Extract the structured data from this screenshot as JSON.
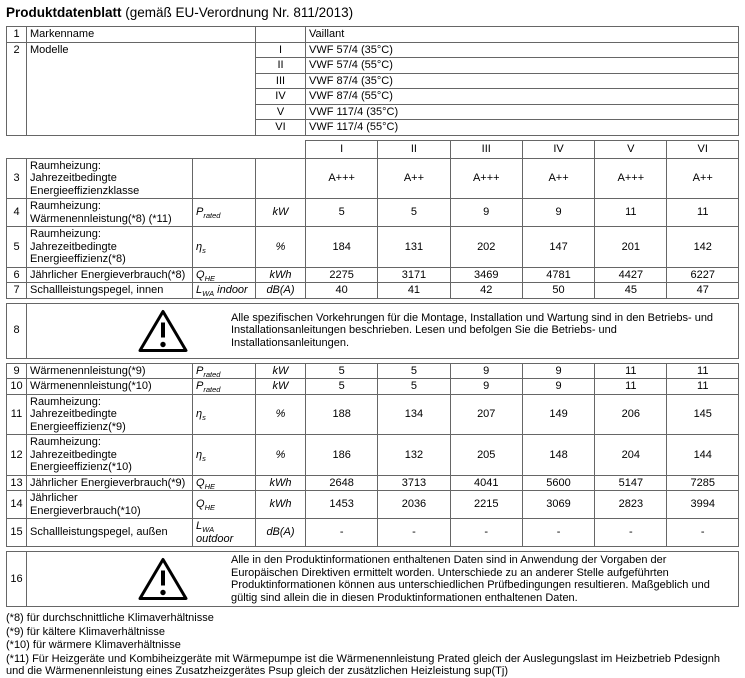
{
  "title": {
    "main": "Produktdatenblatt",
    "suffix": " (gemäß EU-Verordnung Nr. 811/2013)"
  },
  "table1": {
    "brand": {
      "num": "1",
      "label": "Markenname",
      "value": "Vaillant"
    },
    "models": {
      "num": "2",
      "label": "Modelle",
      "entries": [
        {
          "numeral": "I",
          "value": "VWF 57/4 (35°C)"
        },
        {
          "numeral": "II",
          "value": "VWF 57/4 (55°C)"
        },
        {
          "numeral": "III",
          "value": "VWF 87/4 (35°C)"
        },
        {
          "numeral": "IV",
          "value": "VWF 87/4 (55°C)"
        },
        {
          "numeral": "V",
          "value": "VWF 117/4 (35°C)"
        },
        {
          "numeral": "VI",
          "value": "VWF 117/4 (55°C)"
        }
      ]
    }
  },
  "spec": {
    "column_headers": [
      "I",
      "II",
      "III",
      "IV",
      "V",
      "VI"
    ],
    "section1": [
      {
        "num": "3",
        "label": "Raumheizung: Jahrezeitbedingte Energieeffizienzklasse",
        "sym": "",
        "sub": "",
        "suffix": "",
        "unit": "",
        "values": [
          "A+++",
          "A++",
          "A+++",
          "A++",
          "A+++",
          "A++"
        ]
      },
      {
        "num": "4",
        "label": "Raumheizung: Wärmenennleistung(*8) (*11)",
        "sym": "P",
        "sub": "rated",
        "suffix": "",
        "unit": "kW",
        "values": [
          "5",
          "5",
          "9",
          "9",
          "11",
          "11"
        ]
      },
      {
        "num": "5",
        "label": "Raumheizung: Jahrezeitbedingte Energieeffizienz(*8)",
        "sym": "η",
        "sub": "s",
        "suffix": "",
        "unit": "%",
        "values": [
          "184",
          "131",
          "202",
          "147",
          "201",
          "142"
        ]
      },
      {
        "num": "6",
        "label": "Jährlicher Energieverbrauch(*8)",
        "sym": "Q",
        "sub": "HE",
        "suffix": "",
        "unit": "kWh",
        "values": [
          "2275",
          "3171",
          "3469",
          "4781",
          "4427",
          "6227"
        ]
      },
      {
        "num": "7",
        "label": "Schallleistungspegel, innen",
        "sym": "L",
        "sub": "WA",
        "suffix": "indoor",
        "unit": "dB(A)",
        "values": [
          "40",
          "41",
          "42",
          "50",
          "45",
          "47"
        ]
      }
    ],
    "warning8": {
      "num": "8",
      "text": "Alle spezifischen Vorkehrungen für die Montage, Installation und Wartung sind in den Betriebs- und Installationsanleitungen beschrieben. Lesen und befolgen Sie die Betriebs- und Installationsanleitungen."
    },
    "section2": [
      {
        "num": "9",
        "label": "Wärmenennleistung(*9)",
        "sym": "P",
        "sub": "rated",
        "suffix": "",
        "unit": "kW",
        "values": [
          "5",
          "5",
          "9",
          "9",
          "11",
          "11"
        ]
      },
      {
        "num": "10",
        "label": "Wärmenennleistung(*10)",
        "sym": "P",
        "sub": "rated",
        "suffix": "",
        "unit": "kW",
        "values": [
          "5",
          "5",
          "9",
          "9",
          "11",
          "11"
        ]
      },
      {
        "num": "11",
        "label": "Raumheizung: Jahrezeitbedingte Energieeffizienz(*9)",
        "sym": "η",
        "sub": "s",
        "suffix": "",
        "unit": "%",
        "values": [
          "188",
          "134",
          "207",
          "149",
          "206",
          "145"
        ]
      },
      {
        "num": "12",
        "label": "Raumheizung: Jahrezeitbedingte Energieeffizienz(*10)",
        "sym": "η",
        "sub": "s",
        "suffix": "",
        "unit": "%",
        "values": [
          "186",
          "132",
          "205",
          "148",
          "204",
          "144"
        ]
      },
      {
        "num": "13",
        "label": "Jährlicher Energieverbrauch(*9)",
        "sym": "Q",
        "sub": "HE",
        "suffix": "",
        "unit": "kWh",
        "values": [
          "2648",
          "3713",
          "4041",
          "5600",
          "5147",
          "7285"
        ]
      },
      {
        "num": "14",
        "label": "Jährlicher Energieverbrauch(*10)",
        "sym": "Q",
        "sub": "HE",
        "suffix": "",
        "unit": "kWh",
        "values": [
          "1453",
          "2036",
          "2215",
          "3069",
          "2823",
          "3994"
        ]
      },
      {
        "num": "15",
        "label": "Schallleistungspegel, außen",
        "sym": "L",
        "sub": "WA",
        "suffix": "outdoor",
        "unit": "dB(A)",
        "values": [
          "-",
          "-",
          "-",
          "-",
          "-",
          "-"
        ]
      }
    ],
    "warning16": {
      "num": "16",
      "text": "Alle in den Produktinformationen enthaltenen Daten sind in Anwendung der Vorgaben der Europäischen Direktiven ermittelt worden. Unterschiede zu an anderer Stelle aufgeführten Produktinformationen können aus unterschiedlichen Prüfbedingungen resultieren. Maßgeblich und gültig sind allein die in diesen Produktinformationen enthaltenen Daten."
    }
  },
  "footnotes": [
    "(*8) für durchschnittliche Klimaverhältnisse",
    "(*9) für kältere Klimaverhältnisse",
    "(*10) für wärmere Klimaverhältnisse",
    "(*11) Für Heizgeräte und Kombiheizgeräte mit Wärmepumpe ist die Wärmenennleistung Prated gleich der Auslegungslast im Heizbetrieb Pdesignh und die Wärmenennleistung eines Zusatzheizgerätes Psup gleich der zusätzlichen Heizleistung sup(Tj)"
  ],
  "icons": {
    "warning_icon": "warning-triangle"
  },
  "colors": {
    "border": "#666666",
    "text": "#000000",
    "background": "#ffffff"
  }
}
